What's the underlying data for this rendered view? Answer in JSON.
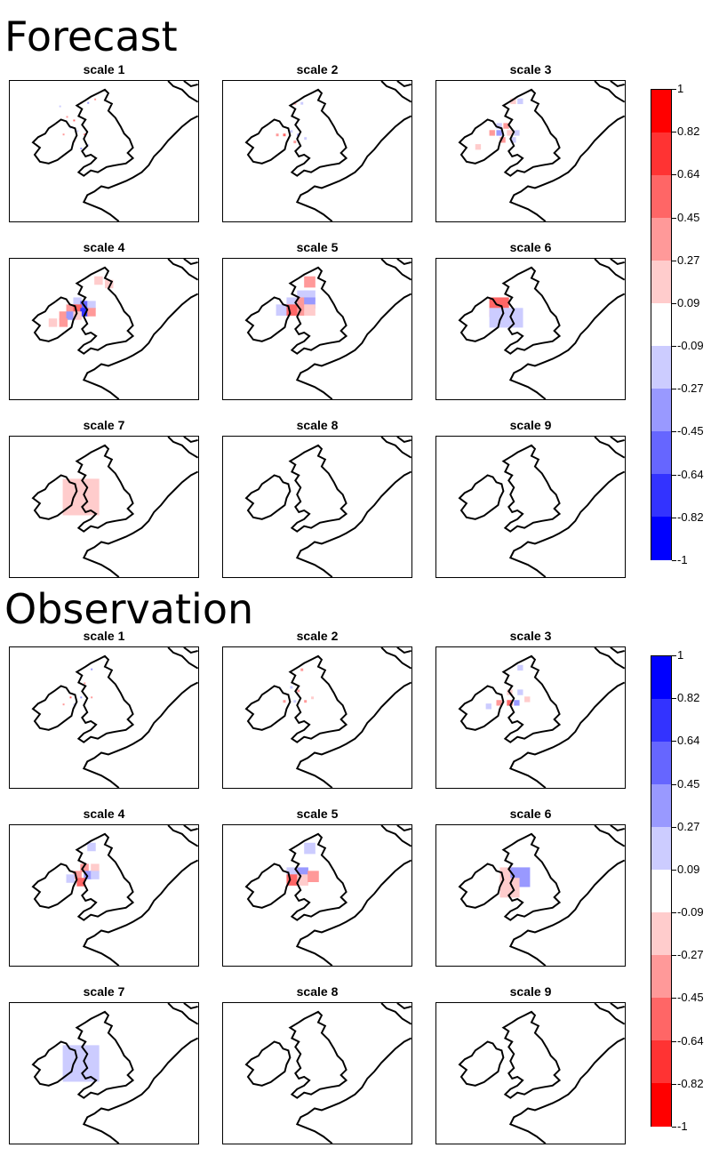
{
  "chart_data": [
    {
      "type": "heatmap",
      "title": "Forecast",
      "panel_titles": [
        "scale 1",
        "scale 2",
        "scale 3",
        "scale 4",
        "scale 5",
        "scale 6",
        "scale 7",
        "scale 8",
        "scale 9"
      ],
      "colorbar": {
        "ticks": [
          "1",
          "0.82",
          "0.64",
          "0.45",
          "0.27",
          "0.09",
          "-0.09",
          "-0.27",
          "-0.45",
          "-0.64",
          "-0.82",
          "-1"
        ],
        "colors_top_to_bottom": [
          "#ff0000",
          "#ff3333",
          "#ff6666",
          "#ff9999",
          "#ffcccc",
          "#ffffff",
          "#ccccff",
          "#9999ff",
          "#6666ff",
          "#3333ff",
          "#0000ff"
        ]
      },
      "panels": [
        {
          "title": "scale 1",
          "cells": [
            [
              40,
              12,
              "#ff6666"
            ],
            [
              44,
              12,
              "#9999ff"
            ],
            [
              48,
              10,
              "#ff9999"
            ],
            [
              32,
              20,
              "#ff9999"
            ],
            [
              28,
              14,
              "#ccccff"
            ],
            [
              36,
              22,
              "#ff6666"
            ],
            [
              34,
              26,
              "#9999ff"
            ],
            [
              30,
              30,
              "#ff9999"
            ],
            [
              38,
              28,
              "#ccccff"
            ],
            [
              42,
              30,
              "#ff6666"
            ],
            [
              40,
              38,
              "#9999ff"
            ],
            [
              36,
              34,
              "#ff9999"
            ],
            [
              44,
              36,
              "#ccccff"
            ]
          ],
          "sparse": true
        },
        {
          "title": "scale 2",
          "cells": [
            [
              40,
              12,
              "#ff9999"
            ],
            [
              44,
              12,
              "#ccccff"
            ],
            [
              30,
              30,
              "#ff9999"
            ],
            [
              38,
              28,
              "#ccccff"
            ],
            [
              34,
              30,
              "#ff6666"
            ],
            [
              42,
              30,
              "#9999ff"
            ],
            [
              40,
              34,
              "#ff9999"
            ],
            [
              46,
              32,
              "#ccccff"
            ]
          ],
          "sparse": true
        },
        {
          "title": "scale 3",
          "cells": [
            [
              42,
              10,
              "#ffcccc"
            ],
            [
              46,
              10,
              "#ccccff"
            ],
            [
              34,
              24,
              "#ccccff"
            ],
            [
              38,
              24,
              "#ff9999"
            ],
            [
              30,
              28,
              "#ff9999"
            ],
            [
              34,
              28,
              "#9999ff"
            ],
            [
              40,
              28,
              "#ffcccc"
            ],
            [
              44,
              28,
              "#ccccff"
            ],
            [
              36,
              32,
              "#ff9999"
            ],
            [
              42,
              32,
              "#ccccff"
            ],
            [
              22,
              36,
              "#ffcccc"
            ]
          ],
          "sparse": false
        },
        {
          "title": "scale 4",
          "cells": [
            [
              48,
              10,
              "#ffcccc"
            ],
            [
              54,
              12,
              "#ffcccc"
            ],
            [
              36,
              22,
              "#ccccff"
            ],
            [
              40,
              24,
              "#6666ff"
            ],
            [
              44,
              24,
              "#ccccff"
            ],
            [
              32,
              26,
              "#ff9999"
            ],
            [
              36,
              26,
              "#ff6666"
            ],
            [
              40,
              28,
              "#3333ff"
            ],
            [
              44,
              28,
              "#ff9999"
            ],
            [
              28,
              30,
              "#ff9999"
            ],
            [
              32,
              30,
              "#9999ff"
            ],
            [
              36,
              30,
              "#ffcccc"
            ],
            [
              22,
              34,
              "#ffcccc"
            ],
            [
              28,
              34,
              "#ff9999"
            ]
          ],
          "sparse": false
        },
        {
          "title": "scale 5",
          "cells": [
            [
              46,
              10,
              "#ff9999"
            ],
            [
              42,
              18,
              "#ccccff"
            ],
            [
              46,
              18,
              "#ccccff"
            ],
            [
              36,
              22,
              "#ccccff"
            ],
            [
              42,
              22,
              "#ff9999"
            ],
            [
              46,
              22,
              "#9999ff"
            ],
            [
              30,
              26,
              "#ccccff"
            ],
            [
              36,
              26,
              "#ff6666"
            ],
            [
              42,
              26,
              "#ff9999"
            ],
            [
              46,
              26,
              "#ffcccc"
            ]
          ],
          "sparse": false
        },
        {
          "title": "scale 6",
          "cells": [
            [
              30,
              22,
              "#ff6666"
            ],
            [
              30,
              28,
              "#ccccff"
            ],
            [
              38,
              28,
              "#ccccff"
            ]
          ],
          "sparse": false
        },
        {
          "title": "scale 7",
          "cells": [
            [
              30,
              24,
              "#ffcccc"
            ]
          ],
          "sparse": false
        },
        {
          "title": "scale 8",
          "cells": [],
          "sparse": false
        },
        {
          "title": "scale 9",
          "cells": [],
          "sparse": false
        }
      ]
    },
    {
      "type": "heatmap",
      "title": "Observation",
      "panel_titles": [
        "scale 1",
        "scale 2",
        "scale 3",
        "scale 4",
        "scale 5",
        "scale 6",
        "scale 7",
        "scale 8",
        "scale 9"
      ],
      "colorbar": {
        "ticks": [
          "1",
          "0.82",
          "0.64",
          "0.45",
          "0.27",
          "0.09",
          "-0.09",
          "-0.27",
          "-0.45",
          "-0.64",
          "-0.82",
          "-1"
        ],
        "colors_top_to_bottom": [
          "#0000ff",
          "#3333ff",
          "#6666ff",
          "#9999ff",
          "#ccccff",
          "#ffffff",
          "#ffcccc",
          "#ff9999",
          "#ff6666",
          "#ff3333",
          "#ff0000"
        ]
      },
      "panels": [
        {
          "title": "scale 1",
          "cells": [
            [
              46,
              12,
              "#9999ff"
            ],
            [
              42,
              20,
              "#ff9999"
            ],
            [
              34,
              28,
              "#ff6666"
            ],
            [
              40,
              28,
              "#9999ff"
            ],
            [
              30,
              32,
              "#ff9999"
            ],
            [
              36,
              32,
              "#ccccff"
            ],
            [
              46,
              28,
              "#ff9999"
            ]
          ],
          "sparse": true
        },
        {
          "title": "scale 2",
          "cells": [
            [
              44,
              12,
              "#ff9999"
            ],
            [
              38,
              22,
              "#ccccff"
            ],
            [
              42,
              24,
              "#ff9999"
            ],
            [
              34,
              30,
              "#ff9999"
            ],
            [
              40,
              30,
              "#ccccff"
            ],
            [
              46,
              30,
              "#ff9999"
            ],
            [
              50,
              28,
              "#ffcccc"
            ]
          ],
          "sparse": true
        },
        {
          "title": "scale 3",
          "cells": [
            [
              46,
              10,
              "#ccccff"
            ],
            [
              40,
              24,
              "#ffcccc"
            ],
            [
              46,
              24,
              "#ccccff"
            ],
            [
              34,
              30,
              "#ff9999"
            ],
            [
              40,
              30,
              "#ff6666"
            ],
            [
              44,
              30,
              "#9999ff"
            ],
            [
              50,
              28,
              "#ffcccc"
            ],
            [
              28,
              32,
              "#ccccff"
            ]
          ],
          "sparse": false
        },
        {
          "title": "scale 4",
          "cells": [
            [
              44,
              10,
              "#ccccff"
            ],
            [
              40,
              22,
              "#ff9999"
            ],
            [
              46,
              22,
              "#ffcccc"
            ],
            [
              36,
              26,
              "#ff9999"
            ],
            [
              42,
              26,
              "#9999ff"
            ],
            [
              46,
              26,
              "#ccccff"
            ],
            [
              32,
              28,
              "#ccccff"
            ],
            [
              38,
              30,
              "#ff6666"
            ]
          ],
          "sparse": false
        },
        {
          "title": "scale 5",
          "cells": [
            [
              46,
              10,
              "#ccccff"
            ],
            [
              36,
              24,
              "#ccccff"
            ],
            [
              42,
              24,
              "#9999ff"
            ],
            [
              36,
              28,
              "#ff6666"
            ],
            [
              42,
              28,
              "#ffcccc"
            ],
            [
              48,
              26,
              "#ff9999"
            ]
          ],
          "sparse": false
        },
        {
          "title": "scale 6",
          "cells": [
            [
              36,
              24,
              "#ffcccc"
            ],
            [
              42,
              24,
              "#9999ff"
            ],
            [
              36,
              30,
              "#ffcccc"
            ]
          ],
          "sparse": false
        },
        {
          "title": "scale 7",
          "cells": [
            [
              30,
              24,
              "#ccccff"
            ]
          ],
          "sparse": false
        },
        {
          "title": "scale 8",
          "cells": [],
          "sparse": false
        },
        {
          "title": "scale 9",
          "cells": [],
          "sparse": false
        }
      ]
    }
  ]
}
